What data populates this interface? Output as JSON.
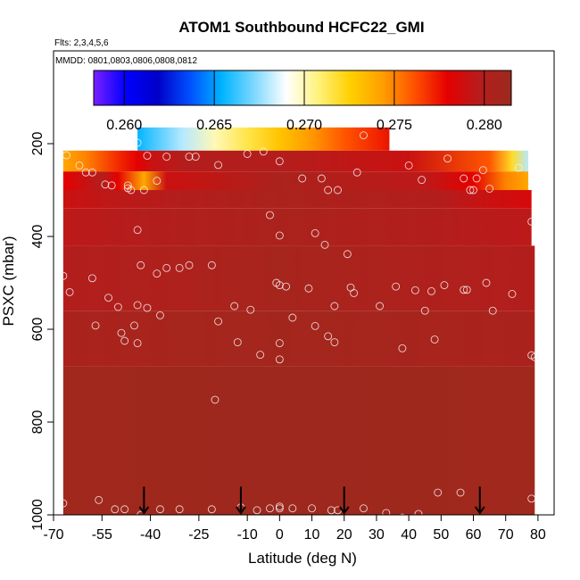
{
  "chart_data": {
    "type": "heatmap",
    "title": "ATOM1 Southbound HCFC22_GMI",
    "subtitle_flights": "Flts: 2,3,4,5,6",
    "subtitle_dates": "MMDD: 0801,0803,0806,0808,0812",
    "xlabel": "Latitude (deg N)",
    "ylabel": "PSXC (mbar)",
    "xlim": [
      -70,
      85
    ],
    "ylim": [
      1000,
      0
    ],
    "x_ticks": [
      -70,
      -55,
      -40,
      -25,
      -10,
      0,
      10,
      20,
      30,
      40,
      50,
      60,
      70,
      80
    ],
    "x_tick_labels": [
      "-70",
      "-55",
      "-40",
      "-25",
      "-10",
      "0",
      "10",
      "20",
      "30",
      "40",
      "50",
      "60",
      "70",
      "80"
    ],
    "y_ticks": [
      200,
      400,
      600,
      800,
      1000
    ],
    "y_tick_labels": [
      "200",
      "400",
      "600",
      "800",
      "1000"
    ],
    "colorbar": {
      "range": [
        0.2583,
        0.2815
      ],
      "ticks": [
        0.26,
        0.265,
        0.27,
        0.275,
        0.28
      ],
      "tick_labels": [
        "0.260",
        "0.265",
        "0.270",
        "0.275",
        "0.280"
      ],
      "colors": [
        "#7a1fff",
        "#0000ff",
        "#0000c8",
        "#0050ff",
        "#00b4ff",
        "#7fd8ff",
        "#ffffff",
        "#fff27a",
        "#ffd000",
        "#ff9e00",
        "#ff5000",
        "#e60000",
        "#b71c1c",
        "#9b2a1d"
      ]
    },
    "layers": [
      {
        "p_top": 165,
        "p_bot": 215,
        "x0": -44,
        "x1": 34,
        "values_lat": [
          -44,
          -30,
          -20,
          -10,
          0,
          10,
          20,
          34
        ],
        "values": [
          0.2655,
          0.268,
          0.27,
          0.2715,
          0.273,
          0.2745,
          0.276,
          0.2775
        ]
      },
      {
        "p_top": 215,
        "p_bot": 260,
        "x0": -67,
        "x1": 77,
        "values_lat": [
          -67,
          -60,
          -50,
          -44,
          -40,
          -30,
          0,
          40,
          65,
          72,
          77
        ],
        "values": [
          0.274,
          0.275,
          0.277,
          0.278,
          0.279,
          0.28,
          0.28,
          0.279,
          0.276,
          0.272,
          0.268
        ]
      },
      {
        "p_top": 260,
        "p_bot": 300,
        "x0": -67,
        "x1": 77,
        "values_lat": [
          -67,
          -55,
          -50,
          -42,
          -35,
          0,
          45,
          60,
          70,
          77
        ],
        "values": [
          0.278,
          0.28,
          0.278,
          0.274,
          0.279,
          0.2805,
          0.2795,
          0.278,
          0.275,
          0.274
        ]
      },
      {
        "p_top": 300,
        "p_bot": 340,
        "x0": -67,
        "x1": 78,
        "values_lat": [
          -67,
          -50,
          -30,
          0,
          50,
          65,
          78
        ],
        "values": [
          0.279,
          0.2795,
          0.28,
          0.2805,
          0.28,
          0.279,
          0.2785
        ]
      },
      {
        "p_top": 340,
        "p_bot": 420,
        "x0": -67,
        "x1": 78,
        "values_lat": [
          -67,
          -40,
          0,
          50,
          78
        ],
        "values": [
          0.2795,
          0.28,
          0.2805,
          0.28,
          0.2795
        ]
      },
      {
        "p_top": 420,
        "p_bot": 560,
        "x0": -67,
        "x1": 79,
        "values_lat": [
          -67,
          -30,
          0,
          40,
          79
        ],
        "values": [
          0.28,
          0.2803,
          0.2808,
          0.2803,
          0.28
        ]
      },
      {
        "p_top": 560,
        "p_bot": 680,
        "x0": -67,
        "x1": 79,
        "values_lat": [
          -67,
          -30,
          0,
          30,
          79
        ],
        "values": [
          0.2805,
          0.2808,
          0.281,
          0.2808,
          0.2805
        ]
      },
      {
        "p_top": 680,
        "p_bot": 1000,
        "x0": -67,
        "x1": 79,
        "values_lat": [
          -67,
          0,
          79
        ],
        "values": [
          0.2812,
          0.2813,
          0.2812
        ]
      }
    ],
    "points": [
      [
        -44,
        198
      ],
      [
        -41,
        226
      ],
      [
        -35,
        228
      ],
      [
        -28,
        228
      ],
      [
        -26,
        228
      ],
      [
        -19,
        246
      ],
      [
        -10,
        222
      ],
      [
        -5,
        217
      ],
      [
        0,
        238
      ],
      [
        7,
        275
      ],
      [
        13,
        275
      ],
      [
        15,
        300
      ],
      [
        18,
        300
      ],
      [
        24,
        262
      ],
      [
        26,
        182
      ],
      [
        40,
        247
      ],
      [
        44,
        278
      ],
      [
        52,
        232
      ],
      [
        57,
        275
      ],
      [
        59,
        300
      ],
      [
        60,
        300
      ],
      [
        61,
        275
      ],
      [
        63,
        257
      ],
      [
        74,
        252
      ],
      [
        65,
        297
      ],
      [
        -66,
        225
      ],
      [
        -62,
        247
      ],
      [
        -60,
        262
      ],
      [
        -58,
        262
      ],
      [
        -54,
        288
      ],
      [
        -52,
        290
      ],
      [
        -47,
        296
      ],
      [
        -46,
        300
      ],
      [
        -42,
        300
      ],
      [
        -38,
        280
      ],
      [
        -47,
        290
      ],
      [
        -44,
        386
      ],
      [
        -3,
        354
      ],
      [
        0,
        398
      ],
      [
        11,
        393
      ],
      [
        14,
        418
      ],
      [
        21,
        438
      ],
      [
        -67,
        485
      ],
      [
        -58,
        490
      ],
      [
        -53,
        532
      ],
      [
        -50,
        552
      ],
      [
        -44,
        548
      ],
      [
        -43,
        462
      ],
      [
        -35,
        468
      ],
      [
        -31,
        468
      ],
      [
        -28,
        462
      ],
      [
        -21,
        462
      ],
      [
        -38,
        480
      ],
      [
        -41,
        554
      ],
      [
        -37,
        570
      ],
      [
        -45,
        592
      ],
      [
        -44,
        630
      ],
      [
        -48,
        625
      ],
      [
        -49,
        608
      ],
      [
        -57,
        592
      ],
      [
        -65,
        520
      ],
      [
        -19,
        583
      ],
      [
        -14,
        550
      ],
      [
        -13,
        628
      ],
      [
        -9,
        558
      ],
      [
        -6,
        655
      ],
      [
        -1,
        500
      ],
      [
        0,
        505
      ],
      [
        2,
        508
      ],
      [
        0,
        630
      ],
      [
        0,
        665
      ],
      [
        4,
        575
      ],
      [
        9,
        512
      ],
      [
        11,
        593
      ],
      [
        15,
        615
      ],
      [
        17,
        628
      ],
      [
        17,
        550
      ],
      [
        22,
        510
      ],
      [
        23,
        522
      ],
      [
        31,
        550
      ],
      [
        36,
        508
      ],
      [
        38,
        641
      ],
      [
        42,
        516
      ],
      [
        45,
        560
      ],
      [
        48,
        622
      ],
      [
        47,
        518
      ],
      [
        51,
        505
      ],
      [
        57,
        515
      ],
      [
        58,
        515
      ],
      [
        64,
        500
      ],
      [
        66,
        560
      ],
      [
        72,
        524
      ],
      [
        78,
        368
      ],
      [
        78,
        656
      ],
      [
        79,
        660
      ],
      [
        -20,
        752
      ],
      [
        -67,
        975
      ],
      [
        -56,
        968
      ],
      [
        -51,
        988
      ],
      [
        -48,
        988
      ],
      [
        -43,
        1000
      ],
      [
        -37,
        988
      ],
      [
        -31,
        988
      ],
      [
        -21,
        988
      ],
      [
        -12,
        984
      ],
      [
        -7,
        990
      ],
      [
        -3,
        986
      ],
      [
        0,
        982
      ],
      [
        0,
        986
      ],
      [
        4,
        986
      ],
      [
        10,
        986
      ],
      [
        16,
        990
      ],
      [
        18,
        990
      ],
      [
        26,
        986
      ],
      [
        33,
        996
      ],
      [
        38,
        1006
      ],
      [
        43,
        998
      ],
      [
        49,
        952
      ],
      [
        56,
        952
      ],
      [
        78,
        965
      ]
    ],
    "arrows_lat": [
      -42,
      -12,
      20,
      62
    ],
    "arrows_p": [
      970,
      1000
    ]
  }
}
